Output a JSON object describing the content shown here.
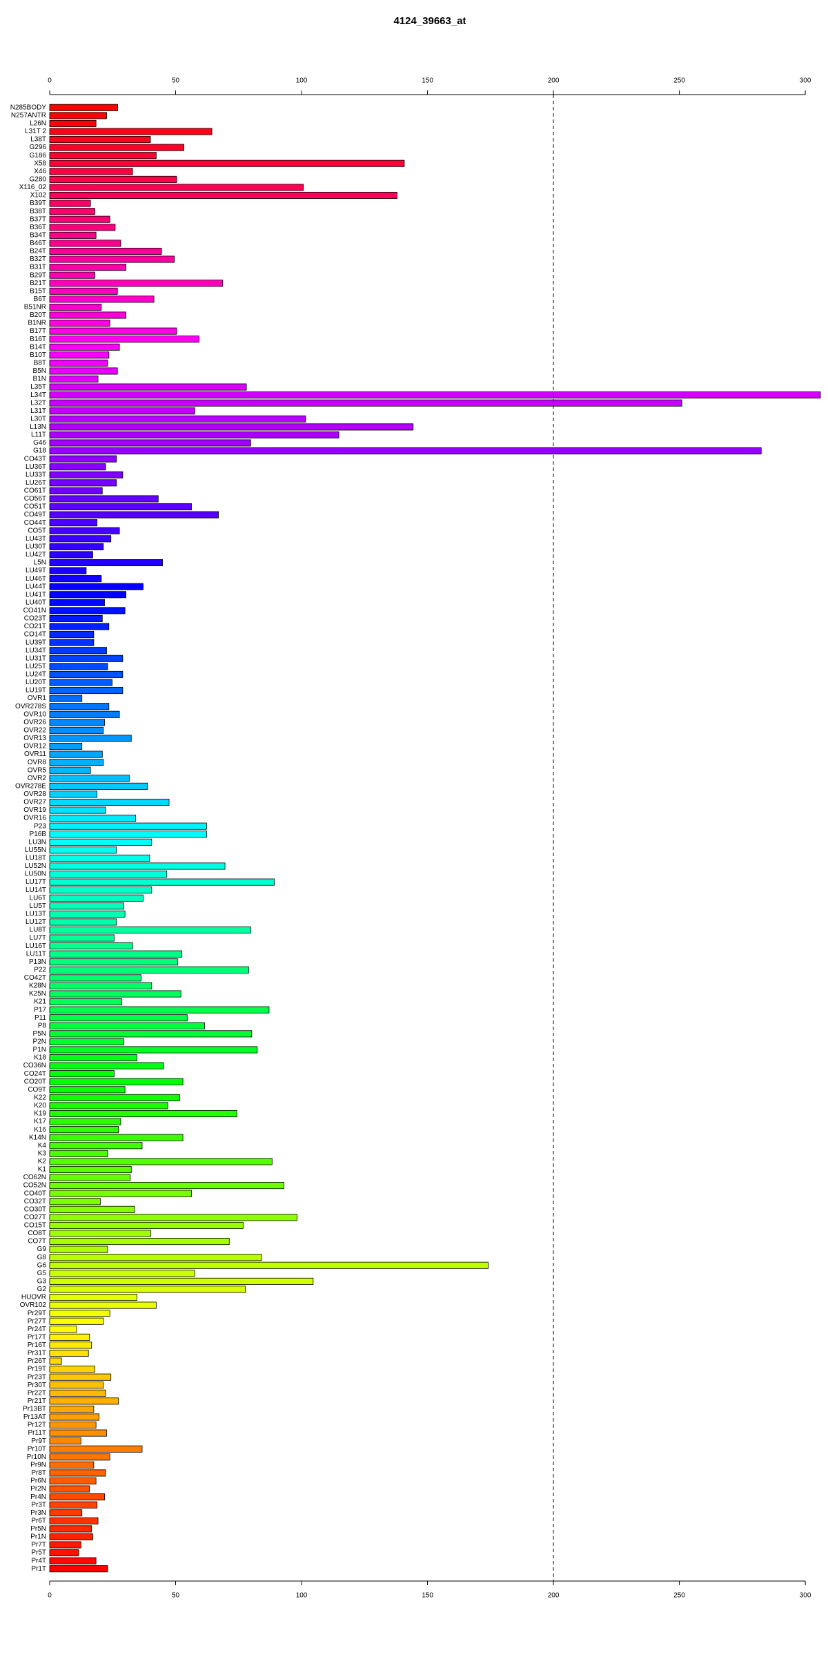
{
  "chart_data": {
    "type": "barh",
    "title": "4124_39663_at",
    "categories": [
      "N285BODY",
      "N257ANTR",
      "L26N",
      "L31T 2",
      "L38T",
      "G296",
      "G186",
      "X58",
      "X46",
      "G280",
      "X116_02",
      "X102",
      "B39T",
      "B38T",
      "B37T",
      "B36T",
      "B34T",
      "B46T",
      "B24T",
      "B32T",
      "B31T",
      "B29T",
      "B21T",
      "B15T",
      "B6T",
      "B51NR",
      "B20T",
      "B1NR",
      "B17T",
      "B16T",
      "B14T",
      "B10T",
      "B8T",
      "B5N",
      "B1N",
      "L35T",
      "L34T",
      "L32T",
      "L31T",
      "L30T",
      "L13N",
      "L11T",
      "G46",
      "G18",
      "CO43T",
      "LU36T",
      "LU33T",
      "LU26T",
      "CO61T",
      "CO56T",
      "CO51T",
      "CO49T",
      "CO44T",
      "CO5T",
      "LU43T",
      "LU30T",
      "LU42T",
      "L5N",
      "LU49T",
      "LU46T",
      "LU44T",
      "LU41T",
      "LU40T",
      "CO41N",
      "CO23T",
      "CO21T",
      "CO14T",
      "LU39T",
      "LU34T",
      "LU31T",
      "LU25T",
      "LU24T",
      "LU20T",
      "LU19T",
      "OVR1",
      "OVR278S",
      "OVR10",
      "OVR26",
      "OVR22",
      "OVR13",
      "OVR12",
      "OVR11",
      "OVR8",
      "OVR5",
      "OVR2",
      "OVR278E",
      "OVR28",
      "OVR27",
      "OVR19",
      "OVR16",
      "P23",
      "P16B",
      "LU3N",
      "LU55N",
      "LU18T",
      "LU52N",
      "LU50N",
      "LU17T",
      "LU14T",
      "LU6T",
      "LU5T",
      "LU13T",
      "LU12T",
      "LU8T",
      "LU7T",
      "LU16T",
      "LU11T",
      "P13N",
      "P22",
      "CO42T",
      "K28N",
      "K25N",
      "K21",
      "P17",
      "P11",
      "P8",
      "P5N",
      "P2N",
      "P1N",
      "K18",
      "CO36N",
      "CO24T",
      "CO20T",
      "CO9T",
      "K22",
      "K20",
      "K19",
      "K17",
      "K16",
      "K14N",
      "K4",
      "K3",
      "K2",
      "K1",
      "CO62N",
      "CO52N",
      "CO40T",
      "CO32T",
      "CO30T",
      "CO27T",
      "CO15T",
      "CO8T",
      "CO7T",
      "G9",
      "G8",
      "G6",
      "G5",
      "G3",
      "G2",
      "HUOVR",
      "OVR102",
      "Pr29T",
      "Pr27T",
      "Pr24T",
      "Pr17T",
      "Pr16T",
      "Pr31T",
      "Pr26T",
      "Pr19T",
      "Pr23T",
      "Pr30T",
      "Pr22T",
      "Pr21T",
      "Pr13BT",
      "Pr13AT",
      "Pr12T",
      "Pr11T",
      "Pr9T",
      "Pr10T",
      "Pr10N",
      "Pr9N",
      "Pr8T",
      "Pr6N",
      "Pr2N",
      "Pr4N",
      "Pr3T",
      "Pr3N",
      "Pr6T",
      "Pr5N",
      "Pr1N",
      "Pr7T",
      "Pr5T",
      "Pr4T",
      "Pr1T"
    ],
    "values": [
      27,
      22.6,
      18.4,
      64.4,
      40,
      53.3,
      42.3,
      140.8,
      32.9,
      50.4,
      100.7,
      137.9,
      16.2,
      17.9,
      23.9,
      26,
      18.4,
      28.2,
      44.4,
      49.5,
      30.3,
      17.9,
      68.7,
      26.9,
      41.4,
      20.5,
      30.3,
      23.9,
      50.4,
      59.3,
      27.7,
      23.5,
      23,
      26.9,
      19.2,
      78.1,
      306,
      251,
      57.6,
      101.6,
      144.3,
      114.8,
      79.8,
      282.5,
      26.5,
      22.2,
      29,
      26.5,
      20.9,
      43.1,
      56.3,
      67,
      18.8,
      27.7,
      24.3,
      21.3,
      17.1,
      44.8,
      14.5,
      20.5,
      37.1,
      30.3,
      21.8,
      29.9,
      20.9,
      23.5,
      17.5,
      17.5,
      22.6,
      29,
      23,
      29,
      24.8,
      29,
      12.8,
      23.5,
      27.7,
      21.8,
      21.3,
      32.4,
      12.8,
      20.9,
      21.3,
      16.2,
      31.6,
      38.8,
      18.8,
      47.4,
      22.2,
      34.1,
      62.3,
      62.3,
      40.5,
      26.5,
      39.7,
      69.6,
      46.5,
      89.2,
      40.5,
      37.1,
      29.4,
      29.9,
      26.5,
      79.8,
      25.6,
      32.9,
      52.5,
      50.8,
      79,
      36.3,
      40.5,
      52.1,
      28.6,
      87.1,
      54.6,
      61.5,
      80.2,
      29.4,
      82.4,
      34.6,
      45.2,
      25.6,
      52.9,
      29.9,
      51.6,
      46.9,
      74.3,
      28.2,
      27.3,
      52.9,
      36.7,
      23,
      88.3,
      32.4,
      32,
      93,
      56.3,
      20.1,
      33.7,
      98.2,
      76.8,
      40.1,
      71.3,
      23,
      84.1,
      174.1,
      57.6,
      104.6,
      77.7,
      34.6,
      42.3,
      23.9,
      21.3,
      10.7,
      15.8,
      16.6,
      15.4,
      4.7,
      17.9,
      24.3,
      21.3,
      22.2,
      27.3,
      17.5,
      19.6,
      18.4,
      22.6,
      12.4,
      36.7,
      23.9,
      17.5,
      22.2,
      18.4,
      15.8,
      21.8,
      18.8,
      12.8,
      19.2,
      16.6,
      17.1,
      12.4,
      11.5,
      18.4,
      23
    ],
    "color_ramp": [
      "#ff0000",
      "#ff00ff",
      "#0000ff",
      "#00ffff",
      "#00ff00",
      "#ffff00",
      "#ff0000"
    ],
    "xlim": [
      0,
      306
    ],
    "xticks": [
      0,
      50,
      100,
      150,
      200,
      250,
      300
    ],
    "vline": 200
  }
}
